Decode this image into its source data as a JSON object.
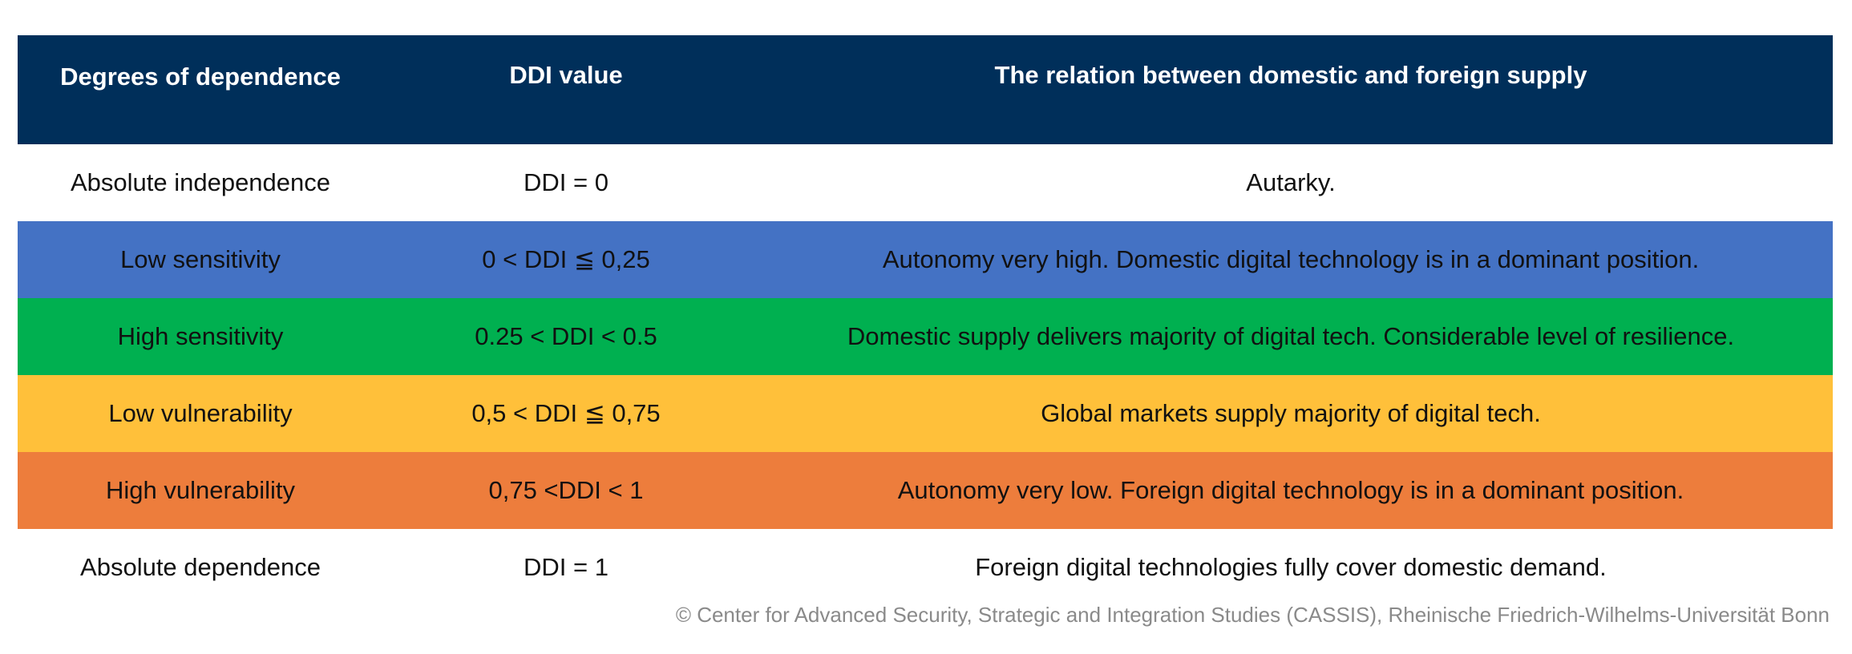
{
  "table": {
    "headers": {
      "degrees": "Degrees of dependence",
      "ddi": "DDI value",
      "relation": "The relation between domestic and foreign supply"
    },
    "rows": [
      {
        "degree": "Absolute independence",
        "ddi": "DDI = 0",
        "relation": "Autarky.",
        "color": "#ffffff"
      },
      {
        "degree": "Low sensitivity",
        "ddi": "0 < DDI ≦ 0,25",
        "relation": "Autonomy very high. Domestic digital technology is in a dominant position.",
        "color": "#4472c4"
      },
      {
        "degree": "High sensitivity",
        "ddi": "0.25 < DDI < 0.5",
        "relation": "Domestic supply delivers majority of digital tech. Considerable level of resilience.",
        "color": "#00b050"
      },
      {
        "degree": "Low vulnerability",
        "ddi": "0,5 < DDI ≦ 0,75",
        "relation": "Global markets supply majority of digital tech.",
        "color": "#ffc03a"
      },
      {
        "degree": "High vulnerability",
        "ddi": "0,75 <DDI < 1",
        "relation": "Autonomy very low. Foreign digital technology is in a dominant position.",
        "color": "#ed7d3c"
      },
      {
        "degree": "Absolute dependence",
        "ddi": "DDI = 1",
        "relation": "Foreign digital technologies fully cover domestic demand.",
        "color": "#ffffff"
      }
    ]
  },
  "footer": {
    "copyright": "© Center for Advanced Security, Strategic and Integration Studies (CASSIS), Rheinische Friedrich-Wilhelms-Universität Bonn"
  }
}
